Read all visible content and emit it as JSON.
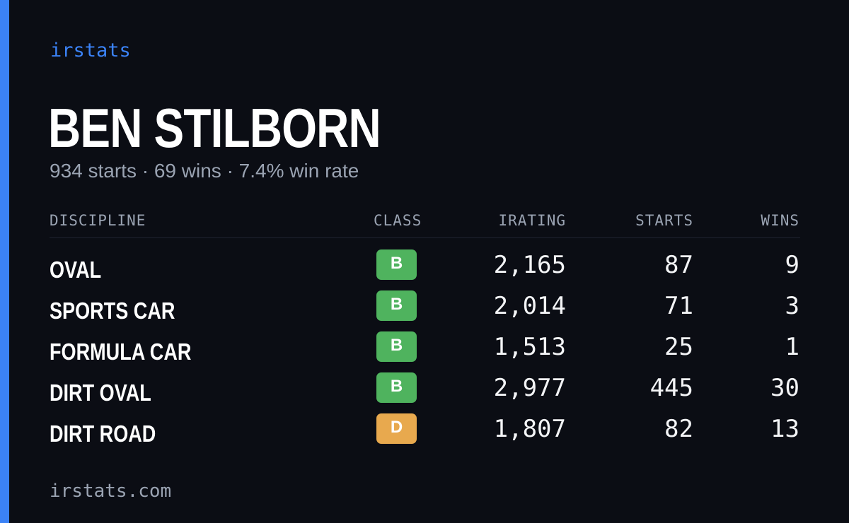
{
  "brand": {
    "label": "irstats",
    "accent_color": "#3b82f6"
  },
  "driver": {
    "name": "BEN STILBORN",
    "starts": "934 starts",
    "wins": "69 wins",
    "win_rate": "7.4% win rate",
    "separator": "·"
  },
  "table": {
    "headers": {
      "discipline": "DISCIPLINE",
      "class": "CLASS",
      "irating": "IRATING",
      "starts": "STARTS",
      "wins": "WINS"
    },
    "rows": [
      {
        "discipline": "OVAL",
        "class": "B",
        "irating": "2,165",
        "starts": "87",
        "wins": "9"
      },
      {
        "discipline": "SPORTS CAR",
        "class": "B",
        "irating": "2,014",
        "starts": "71",
        "wins": "3"
      },
      {
        "discipline": "FORMULA CAR",
        "class": "B",
        "irating": "1,513",
        "starts": "25",
        "wins": "1"
      },
      {
        "discipline": "DIRT OVAL",
        "class": "B",
        "irating": "2,977",
        "starts": "445",
        "wins": "30"
      },
      {
        "discipline": "DIRT ROAD",
        "class": "D",
        "irating": "1,807",
        "starts": "82",
        "wins": "13"
      }
    ]
  },
  "class_colors": {
    "B": "#4fb35e",
    "D": "#e8a94e"
  },
  "footer": {
    "url": "irstats.com"
  }
}
